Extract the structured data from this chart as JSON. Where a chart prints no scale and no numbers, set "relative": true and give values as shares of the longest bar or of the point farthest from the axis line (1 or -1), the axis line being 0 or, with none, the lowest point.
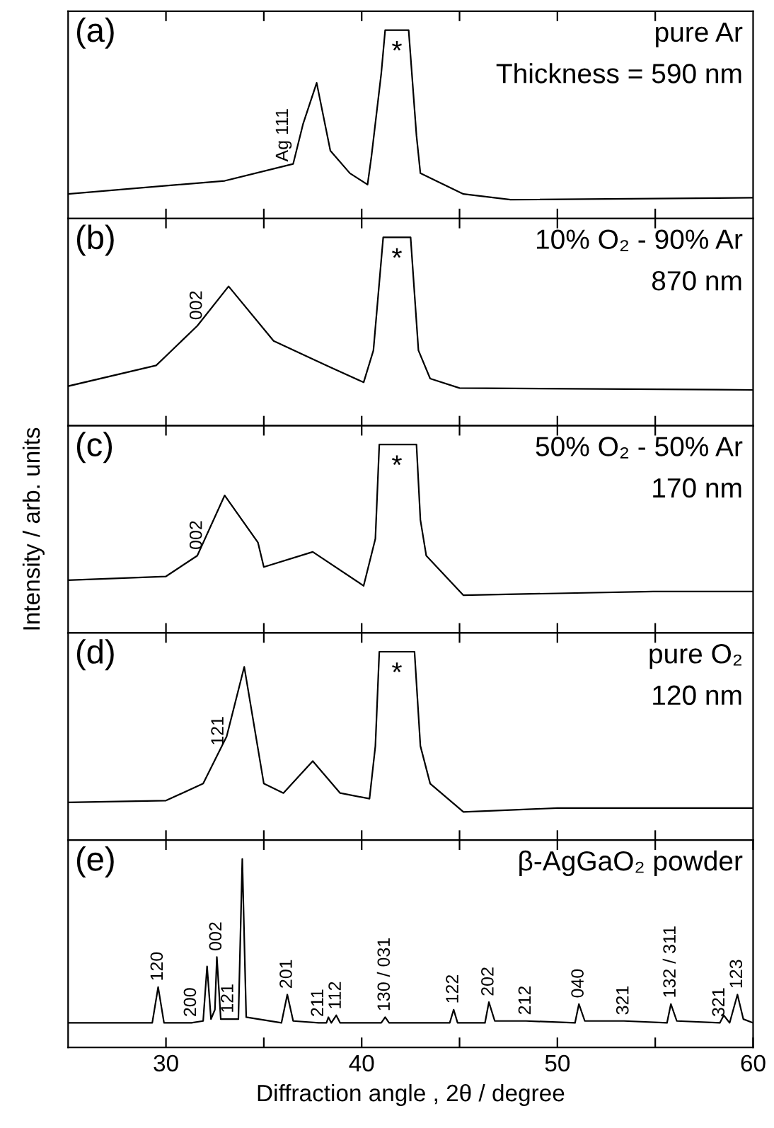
{
  "chart_data": [
    {
      "type": "line",
      "relative": true,
      "title": "(a)",
      "tick_labels": false,
      "xlim": [
        25,
        60
      ],
      "xticks": [
        {
          "value": 30,
          "label": null
        },
        {
          "value": 35,
          "label": null
        },
        {
          "value": 40,
          "label": null
        },
        {
          "value": 45,
          "label": null
        },
        {
          "value": 50,
          "label": null
        },
        {
          "value": 55,
          "label": null
        }
      ],
      "series": [
        {
          "color": "#000000",
          "x": [
            25,
            33,
            36.5,
            37.0,
            37.7,
            38.4,
            39.4,
            40.3,
            40.5,
            41.0,
            41.2,
            42.4,
            42.8,
            43.0,
            45.2,
            47.6,
            60
          ],
          "values": [
            0.13,
            0.2,
            0.29,
            0.5,
            0.72,
            0.36,
            0.24,
            0.18,
            0.33,
            0.77,
            1,
            1,
            0.44,
            0.24,
            0.13,
            0.1,
            0.11
          ]
        }
      ],
      "annotations": [
        {
          "text": "Ag 111",
          "x": 36.0,
          "y": 0.27
        },
        {
          "text": "*",
          "x": 41.8,
          "y": 1
        },
        "pure Ar",
        "Thickness = 590 nm"
      ]
    },
    {
      "type": "line",
      "relative": true,
      "title": "(b)",
      "tick_labels": false,
      "xlim": [
        25,
        60
      ],
      "xticks": [
        {
          "value": 30,
          "label": null
        },
        {
          "value": 35,
          "label": null
        },
        {
          "value": 40,
          "label": null
        },
        {
          "value": 45,
          "label": null
        },
        {
          "value": 50,
          "label": null
        },
        {
          "value": 55,
          "label": null
        }
      ],
      "series": [
        {
          "color": "#000000",
          "x": [
            25,
            29.5,
            31.6,
            33.2,
            35.5,
            38.4,
            40.1,
            40.6,
            41.1,
            42.5,
            42.9,
            43.5,
            45,
            60
          ],
          "values": [
            0.21,
            0.32,
            0.53,
            0.74,
            0.45,
            0.31,
            0.23,
            0.4,
            1,
            1,
            0.4,
            0.25,
            0.2,
            0.19
          ]
        }
      ],
      "annotations": [
        {
          "text": "002",
          "x": 31.6,
          "y": 0.53
        },
        {
          "text": "*",
          "x": 41.8,
          "y": 1
        },
        "10% O₂ - 90% Ar",
        "870 nm"
      ]
    },
    {
      "type": "line",
      "relative": true,
      "title": "(c)",
      "ylabel": "Intensity / arb. units",
      "tick_labels": false,
      "xlim": [
        25,
        60
      ],
      "xticks": [
        {
          "value": 30,
          "label": null
        },
        {
          "value": 35,
          "label": null
        },
        {
          "value": 40,
          "label": null
        },
        {
          "value": 45,
          "label": null
        },
        {
          "value": 50,
          "label": null
        },
        {
          "value": 55,
          "label": null
        }
      ],
      "series": [
        {
          "color": "#000000",
          "x": [
            25,
            30,
            31.6,
            33.0,
            34.7,
            35.0,
            37.5,
            40.1,
            40.7,
            40.9,
            42.8,
            43.0,
            43.3,
            45.2,
            50,
            54.9,
            60
          ],
          "values": [
            0.28,
            0.3,
            0.41,
            0.73,
            0.48,
            0.35,
            0.43,
            0.25,
            0.5,
            1,
            1,
            0.6,
            0.41,
            0.2,
            0.21,
            0.22,
            0.22
          ]
        }
      ],
      "annotations": [
        {
          "text": "002",
          "x": 31.6,
          "y": 0.41
        },
        {
          "text": "*",
          "x": 41.8,
          "y": 1
        },
        "50% O₂ - 50% Ar",
        "170 nm"
      ]
    },
    {
      "type": "line",
      "relative": true,
      "title": "(d)",
      "tick_labels": false,
      "xlim": [
        25,
        60
      ],
      "xticks": [
        {
          "value": 30,
          "label": null
        },
        {
          "value": 35,
          "label": null
        },
        {
          "value": 40,
          "label": null
        },
        {
          "value": 45,
          "label": null
        },
        {
          "value": 50,
          "label": null
        },
        {
          "value": 55,
          "label": null
        }
      ],
      "series": [
        {
          "color": "#000000",
          "x": [
            25,
            30,
            31.9,
            33.1,
            34.0,
            35.0,
            36.0,
            37.5,
            38.9,
            40.4,
            40.7,
            40.9,
            42.7,
            43.0,
            43.5,
            45.2,
            50,
            60
          ],
          "values": [
            0.2,
            0.21,
            0.3,
            0.55,
            0.92,
            0.3,
            0.25,
            0.42,
            0.25,
            0.22,
            0.5,
            1,
            1,
            0.5,
            0.3,
            0.15,
            0.17,
            0.17
          ]
        }
      ],
      "annotations": [
        {
          "text": "121",
          "x": 32.7,
          "y": 0.47
        },
        {
          "text": "*",
          "x": 41.8,
          "y": 1
        },
        "pure O₂",
        "120 nm"
      ]
    },
    {
      "type": "line",
      "relative": true,
      "title": "(e)",
      "xlabel": "Diffraction angle , 2θ / degree",
      "tick_labels": "x",
      "xlim": [
        25,
        60
      ],
      "xticks": [
        30,
        {
          "value": 35,
          "label": null
        },
        40,
        {
          "value": 45,
          "label": null
        },
        50,
        {
          "value": 55,
          "label": null
        },
        60
      ],
      "series": [
        {
          "color": "#000000",
          "x": [
            25,
            29.3,
            29.6,
            29.9,
            31.3,
            31.9,
            32.1,
            32.3,
            32.5,
            32.6,
            32.8,
            33.2,
            33.7,
            33.9,
            34.1,
            35.9,
            36.2,
            36.5,
            37.8,
            38.2,
            38.3,
            38.45,
            38.7,
            38.9,
            41.0,
            41.2,
            41.4,
            44.5,
            44.7,
            44.9,
            46.3,
            46.5,
            46.8,
            48.4,
            50.9,
            51.1,
            51.4,
            53.4,
            55.6,
            55.8,
            56.1,
            58.3,
            58.5,
            58.8,
            59.2,
            59.5,
            60
          ],
          "values": [
            0.13,
            0.13,
            0.32,
            0.13,
            0.13,
            0.14,
            0.43,
            0.15,
            0.2,
            0.48,
            0.15,
            0.15,
            0.15,
            1,
            0.16,
            0.13,
            0.28,
            0.14,
            0.13,
            0.13,
            0.16,
            0.13,
            0.17,
            0.13,
            0.13,
            0.16,
            0.13,
            0.13,
            0.2,
            0.13,
            0.13,
            0.24,
            0.14,
            0.14,
            0.13,
            0.23,
            0.14,
            0.14,
            0.13,
            0.23,
            0.14,
            0.13,
            0.17,
            0.13,
            0.28,
            0.15,
            0.13
          ]
        }
      ],
      "annotations": [
        {
          "text": "120",
          "x": 29.6,
          "y": 0.32
        },
        {
          "text": "200",
          "x": 31.3,
          "y": 0.13
        },
        {
          "text": "002",
          "x": 32.6,
          "y": 0.48
        },
        {
          "text": "121",
          "x": 33.2,
          "y": 0.15
        },
        {
          "text": "201",
          "x": 36.2,
          "y": 0.28
        },
        {
          "text": "211",
          "x": 37.8,
          "y": 0.13
        },
        {
          "text": "112",
          "x": 38.7,
          "y": 0.17
        },
        {
          "text": "130 / 031",
          "x": 41.2,
          "y": 0.16
        },
        {
          "text": "122",
          "x": 44.7,
          "y": 0.2
        },
        {
          "text": "202",
          "x": 46.5,
          "y": 0.24
        },
        {
          "text": "212",
          "x": 48.4,
          "y": 0.14
        },
        {
          "text": "040",
          "x": 51.1,
          "y": 0.23
        },
        {
          "text": "321",
          "x": 53.4,
          "y": 0.14
        },
        {
          "text": "132 / 311",
          "x": 55.8,
          "y": 0.23
        },
        {
          "text": "321",
          "x": 58.3,
          "y": 0.13
        },
        {
          "text": "123",
          "x": 59.2,
          "y": 0.28
        },
        "β-AgGaO₂ powder"
      ]
    }
  ]
}
